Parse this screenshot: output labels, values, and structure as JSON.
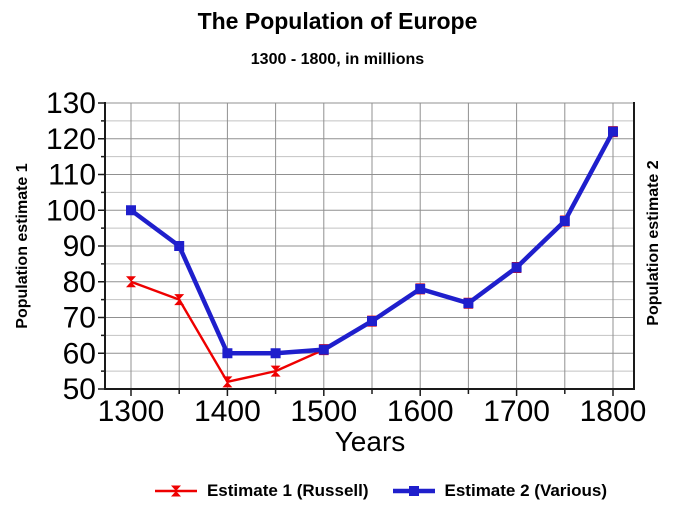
{
  "title": "The Population of Europe",
  "subtitle": "1300 - 1800, in millions",
  "colors": {
    "background": "#ffffff",
    "estimate1": "#ee0000",
    "estimate2": "#1f1fcc",
    "axis": "#1a1a1a",
    "grid_major": "#909090",
    "grid_minor": "#c2c2c2",
    "text": "#000000"
  },
  "axes": {
    "x_label": "Years",
    "y_left_label": "Population estimate 1",
    "y_right_label": "Population estimate 2",
    "x_range": [
      1300,
      1800
    ],
    "y_range": [
      50,
      130
    ],
    "x_ticks": [
      1300,
      1400,
      1500,
      1600,
      1700,
      1800
    ],
    "x_minor_step": 50,
    "y_ticks": [
      50,
      60,
      70,
      80,
      90,
      100,
      110,
      120,
      130
    ],
    "y_minor_step": 5,
    "grid": "on"
  },
  "legend": [
    {
      "label": "Estimate 1 (Russell)",
      "color": "#ee0000",
      "marker": "bowtie"
    },
    {
      "label": "Estimate 2 (Various)",
      "color": "#1f1fcc",
      "marker": "square"
    }
  ],
  "chart_data": {
    "type": "line",
    "title": "The Population of Europe",
    "subtitle": "1300 - 1800, in millions",
    "xlabel": "Years",
    "ylabel_left": "Population estimate 1",
    "ylabel_right": "Population estimate 2",
    "xlim": [
      1300,
      1800
    ],
    "ylim": [
      50,
      130
    ],
    "legend_position": "bottom",
    "x": [
      1300,
      1350,
      1400,
      1450,
      1500,
      1550,
      1600,
      1650,
      1700,
      1750,
      1800
    ],
    "series": [
      {
        "name": "Estimate 1 (Russell)",
        "color": "#ee0000",
        "marker": "bowtie",
        "values": [
          80,
          75,
          52,
          55,
          61,
          69,
          78,
          74,
          84,
          97,
          122
        ]
      },
      {
        "name": "Estimate 2 (Various)",
        "color": "#1f1fcc",
        "marker": "square",
        "values": [
          100,
          90,
          60,
          60,
          61,
          69,
          78,
          74,
          84,
          97,
          122
        ]
      }
    ]
  }
}
